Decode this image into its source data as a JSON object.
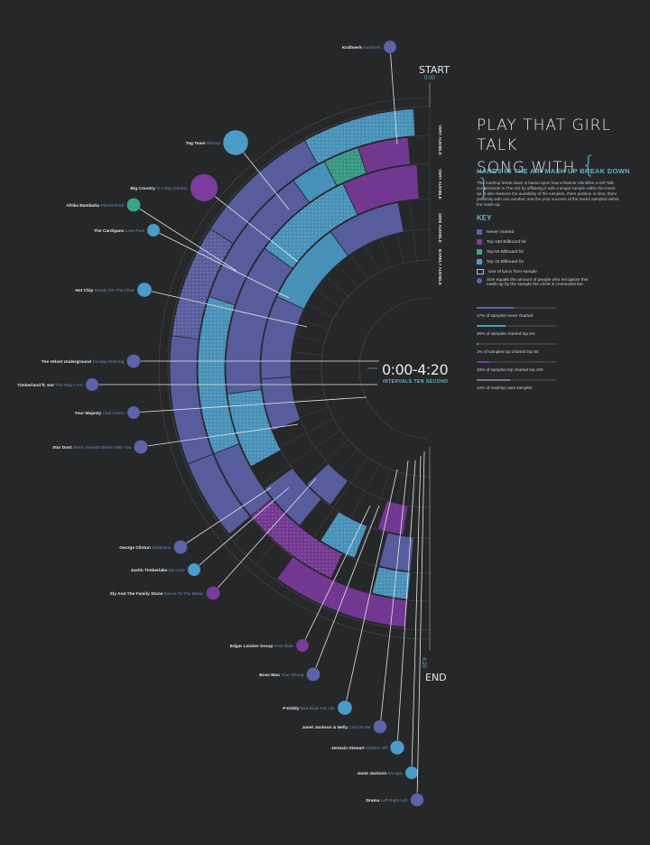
{
  "title": {
    "line1": "PLAY THAT GIRL TALK",
    "line2": "SONG WITH",
    "brace_open": "{",
    "brace_close": "}"
  },
  "subtitle": "HANDS IN THE AIR MASH UP BREAK DOWN",
  "description": "This mashup break down is based upon how a listener identifies a Girl Talk song (Hands In The Air) by affiliating it with a singal sample within the mash-up. It also features the audability of the samples, there position in time, there proximity with one another, and the prior success of the tracks sampled within the mash-up.",
  "key": {
    "heading": "KEY",
    "items": [
      {
        "label": "Never charted",
        "color": "#5d63a8",
        "type": "swatch"
      },
      {
        "label": "Top 100 Billboard hit",
        "color": "#7b3a9c",
        "type": "swatch"
      },
      {
        "label": "Top 50 Billboard hit",
        "color": "#3aa38c",
        "type": "swatch"
      },
      {
        "label": "Top 10 Billboard hit",
        "color": "#4b9cc8",
        "type": "swatch"
      },
      {
        "label": "Use of lyrics from sample",
        "color": "#bbbbbb",
        "type": "outline"
      },
      {
        "label": "Size equals the amount of people who recognize this mash-up by the sample  the circle is connected too",
        "color": "#5d63a8",
        "type": "dot"
      }
    ]
  },
  "stats": [
    {
      "label": "47% of samples never charted",
      "value": 0.47,
      "color": "#5d63a8"
    },
    {
      "label": "36% of samples charted top ten",
      "value": 0.36,
      "color": "#4b9cc8"
    },
    {
      "label": "1% of samples top charted top 50",
      "value": 0.01,
      "color": "#3aa38c"
    },
    {
      "label": "16% of samples top charted top 100",
      "value": 0.16,
      "color": "#7b3a9c"
    },
    {
      "label": "42% of mashup uses samples",
      "value": 0.42,
      "color": "#777a80"
    }
  ],
  "center": {
    "time": "0:00-4:20",
    "caption": "INTERVALS TEN SECOND"
  },
  "start": {
    "label": "START",
    "time": "0:00"
  },
  "end": {
    "label": "END",
    "time": "4:20"
  },
  "rings": [
    "VERY AUDIBLE",
    "VERY AUDIBLE",
    "SEMI AUDIBLE",
    "BARELY AUDIBLE"
  ],
  "colors": {
    "background": "#262728",
    "never": "#5d63a8",
    "top100": "#7b3a9c",
    "top50": "#3aa38c",
    "top10": "#4b9cc8",
    "accent": "#5fb3d3"
  },
  "samples": [
    {
      "artist": "Kraftwerk",
      "song": "Numbers",
      "color": "#5d63a8",
      "size": 0.25
    },
    {
      "artist": "Tag Team",
      "song": "Whoop",
      "color": "#4b9cc8",
      "size": 1.0
    },
    {
      "artist": "Big Country",
      "song": "In A Big Country",
      "color": "#7b3a9c",
      "size": 1.15
    },
    {
      "artist": "Afrika Bambatta",
      "song": "Planet Rock",
      "color": "#3aa38c",
      "size": 0.3
    },
    {
      "artist": "The Cardigans",
      "song": "Love Fool",
      "color": "#4b9cc8",
      "size": 0.25
    },
    {
      "artist": "Hot Chip",
      "song": "Ready For The Floor",
      "color": "#4b9cc8",
      "size": 0.35
    },
    {
      "artist": "The Velvet Underground",
      "song": "Sunday Morning",
      "color": "#5d63a8",
      "size": 0.3
    },
    {
      "artist": "Timberland ft. Ker",
      "song": "The Way I Are",
      "color": "#5d63a8",
      "size": 0.25
    },
    {
      "artist": "Your Majesty",
      "song": "Club Action",
      "color": "#5d63a8",
      "size": 0.25
    },
    {
      "artist": "Star Dust",
      "song": "Music Sounds Better With You",
      "color": "#5d63a8",
      "size": 0.3
    },
    {
      "artist": "George Clinton",
      "song": "Skeletons",
      "color": "#5d63a8",
      "size": 0.3
    },
    {
      "artist": "Justin Timberlake",
      "song": "My Love",
      "color": "#4b9cc8",
      "size": 0.25
    },
    {
      "artist": "Sly And The Family Stone",
      "song": "Dance To The Music",
      "color": "#7b3a9c",
      "size": 0.3
    },
    {
      "artist": "Edgar Loicker Group",
      "song": "Free Ride",
      "color": "#7b3a9c",
      "size": 0.25
    },
    {
      "artist": "Boss Man",
      "song": "Your Wrong",
      "color": "#5d63a8",
      "size": 0.3
    },
    {
      "artist": "P-Diddy",
      "song": "Bad Boys For Life",
      "color": "#4b9cc8",
      "size": 0.35
    },
    {
      "artist": "Janet Jackson & Nelly",
      "song": "Call On Me",
      "color": "#5d63a8",
      "size": 0.28
    },
    {
      "artist": "Jermain Stewart",
      "song": "Clothes Off",
      "color": "#4b9cc8",
      "size": 0.33
    },
    {
      "artist": "Janet Jackson",
      "song": "Escape",
      "color": "#4b9cc8",
      "size": 0.25
    },
    {
      "artist": "Drama",
      "song": "Left Right Left",
      "color": "#5d63a8",
      "size": 0.27
    }
  ]
}
